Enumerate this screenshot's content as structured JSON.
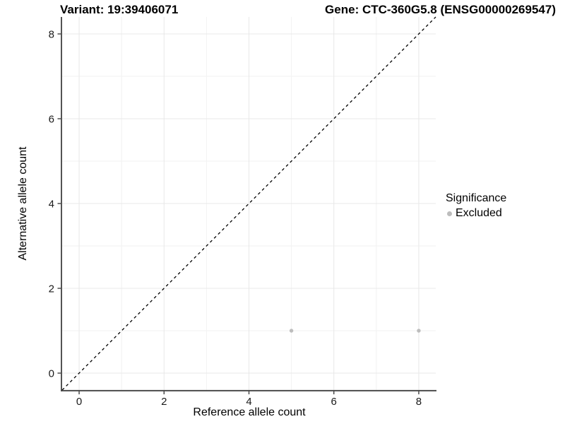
{
  "titles": {
    "left": "Variant: 19:39406071",
    "right": "Gene: CTC-360G5.8 (ENSG00000269547)"
  },
  "chart_data": {
    "type": "scatter",
    "xlabel": "Reference allele count",
    "ylabel": "Alternative allele count",
    "xlim": [
      -0.4,
      8.4
    ],
    "ylim": [
      -0.4,
      8.4
    ],
    "x_major_ticks": [
      0,
      2,
      4,
      6,
      8
    ],
    "y_major_ticks": [
      0,
      2,
      4,
      6,
      8
    ],
    "x_minor_ticks": [
      1,
      3,
      5,
      7
    ],
    "y_minor_ticks": [
      1,
      3,
      5,
      7
    ],
    "grid": "on",
    "series": [
      {
        "name": "Excluded",
        "color": "#bdbdbd",
        "points": [
          {
            "x": 5,
            "y": 1
          },
          {
            "x": 8,
            "y": 1
          }
        ]
      }
    ],
    "reference_line": {
      "kind": "identity",
      "style": "dashed",
      "color": "#000000"
    },
    "legend": {
      "title": "Significance",
      "position": "right",
      "items": [
        {
          "label": "Excluded",
          "color": "#bdbdbd"
        }
      ]
    },
    "colors": {
      "axis_line": "#404040",
      "tick_label": "#1a1a1a",
      "grid_major": "#e8e8e8",
      "grid_minor": "#f2f2f2",
      "background": "#ffffff"
    }
  }
}
